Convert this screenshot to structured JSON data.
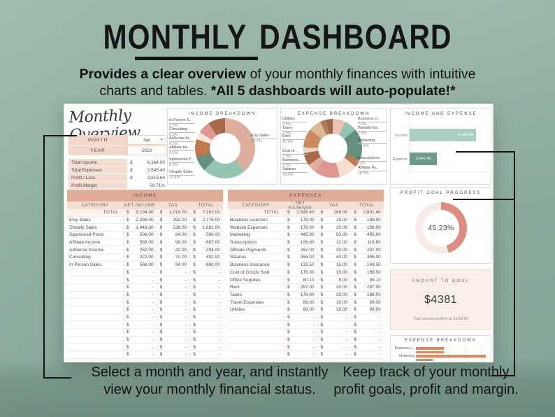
{
  "title": "MONTHLY DASHBOARD",
  "subtitle": {
    "bold1": "Provides a clear overview",
    "rest1": " of your monthly finances with intuitive",
    "rest2": "charts and tables. ",
    "bold2": "*All 5 dashboards will auto-populate!*"
  },
  "sheet": {
    "script_title": "Monthly Overview",
    "selector": {
      "month_label": "MONTH",
      "month_value": "Apr",
      "year_label": "YEAR",
      "year_value": "2023"
    },
    "summary": [
      {
        "label": "Total Income",
        "currency": "$",
        "value": "6,164.00"
      },
      {
        "label": "Total Expenses",
        "currency": "$",
        "value": "2,545.40"
      },
      {
        "label": "Profit / Loss",
        "currency": "$",
        "value": "3,618.60"
      },
      {
        "label": "Profit Margin",
        "currency": "",
        "value": "58.71%"
      }
    ]
  },
  "income_table": {
    "title": "INCOME",
    "columns": [
      "CATEGORY",
      "NET INCOME",
      "TAX",
      "TOTAL"
    ],
    "total_label": "TOTAL",
    "currency": "$",
    "dash": "-",
    "total": {
      "net": "6,164.00",
      "tax": "1,018.00",
      "total": "7,182.00"
    },
    "rows": [
      {
        "c": "Etsy Sales",
        "n": "2,386.00",
        "t": "392.00",
        "tt": "2,778.00"
      },
      {
        "c": "Shopify Sales",
        "n": "1,443.00",
        "t": "238.00",
        "tt": "1,681.00"
      },
      {
        "c": "Sponsored Posts",
        "n": "506.00",
        "t": "84.00",
        "tt": "590.00"
      },
      {
        "c": "Affiliate Income",
        "n": "589.00",
        "t": "98.00",
        "tt": "687.00"
      },
      {
        "c": "AdSense Income",
        "n": "252.00",
        "t": "42.00",
        "tt": "294.00"
      },
      {
        "c": "Consulting",
        "n": "422.00",
        "t": "70.00",
        "tt": "492.00"
      },
      {
        "c": "In Person Sales",
        "n": "566.00",
        "t": "94.00",
        "tt": "660.00"
      }
    ],
    "empty_rows": 12
  },
  "expense_table": {
    "title": "EXPENSES",
    "columns": [
      "CATEGORY",
      "NET EXPENSE",
      "TAX",
      "TOTAL"
    ],
    "total_label": "TOTAL",
    "currency": "$",
    "dash": "-",
    "total": {
      "net": "2,545.40",
      "tax": "286.00",
      "total": "2,831.40"
    },
    "rows": [
      {
        "c": "Business Licenses",
        "n": "178.00",
        "t": "20.00",
        "tt": "198.00"
      },
      {
        "c": "Website Expenses",
        "n": "178.00",
        "t": "20.00",
        "tt": "198.00"
      },
      {
        "c": "Marketing",
        "n": "445.00",
        "t": "50.00",
        "tt": "495.00"
      },
      {
        "c": "Subscriptions",
        "n": "106.80",
        "t": "12.00",
        "tt": "118.80"
      },
      {
        "c": "Affiliate Payments",
        "n": "267.00",
        "t": "30.00",
        "tt": "297.00"
      },
      {
        "c": "Salaries",
        "n": "356.00",
        "t": "40.00",
        "tt": "396.00"
      },
      {
        "c": "Business Insurance",
        "n": "133.50",
        "t": "15.00",
        "tt": "148.50"
      },
      {
        "c": "Cost of Goods Sold",
        "n": "178.00",
        "t": "20.00",
        "tt": "198.00"
      },
      {
        "c": "Office Supplies",
        "n": "80.10",
        "t": "9.00",
        "tt": "89.10"
      },
      {
        "c": "Rent",
        "n": "267.00",
        "t": "30.00",
        "tt": "297.00"
      },
      {
        "c": "Taxes",
        "n": "178.00",
        "t": "20.00",
        "tt": "198.00"
      },
      {
        "c": "Travel Expenses",
        "n": "89.00",
        "t": "10.00",
        "tt": "99.00"
      },
      {
        "c": "Utilities",
        "n": "89.00",
        "t": "10.00",
        "tt": "99.00"
      }
    ],
    "empty_rows": 6
  },
  "cards": {
    "amount_to_goal": {
      "title": "AMOUNT TO GOAL",
      "value": "$4381",
      "note": "Your current profit is at 3,618.60"
    }
  },
  "chart_data": [
    {
      "type": "pie",
      "title": "INCOME BREAKDOWN",
      "labels": [
        "Etsy Sales",
        "Shopify Sales",
        "Sponsored Posts",
        "Affiliate Income",
        "AdSense Income",
        "Consulting",
        "In Person Sales"
      ],
      "values": [
        2778,
        1681,
        590,
        687,
        294,
        492,
        660
      ],
      "pct": [
        "38.7%",
        "23.4%",
        "8.2%",
        "9.6%",
        "4.1%",
        "6.9%",
        "9.2%"
      ],
      "colors": [
        "#dcae9b",
        "#94c5b0",
        "#64907e",
        "#c0794f",
        "#f8e7d8",
        "#df9890",
        "#a96a4c"
      ],
      "callouts": [
        {
          "name": "In Person S..",
          "pct": "9.2%"
        },
        {
          "name": "Consulting",
          "pct": "6.9%"
        },
        {
          "name": "AdSense In..",
          "pct": "4.1%"
        },
        {
          "name": "Affiliate Inc..",
          "pct": "9.6%"
        },
        {
          "name": "Sponsored P..",
          "pct": "8.2%"
        },
        {
          "name": "Shopify Sales",
          "pct": "23.4%"
        },
        {
          "name": "Etsy Sales",
          "pct": "38.7%"
        }
      ]
    },
    {
      "type": "pie",
      "title": "EXPENSE BREAKDOWN",
      "labels": [
        "Business Licenses",
        "Website Expenses",
        "Marketing",
        "Subscriptions",
        "Affiliate Payments",
        "Salaries",
        "Business Insurance",
        "Cost of Goods Sold",
        "Office Supplies",
        "Rent",
        "Taxes",
        "Travel Expenses",
        "Utilities"
      ],
      "values": [
        198,
        198,
        495,
        118.8,
        297,
        396,
        148.5,
        198,
        89.1,
        297,
        198,
        99,
        99
      ],
      "pct": [
        "7.0%",
        "7.0%",
        "17.5%",
        "4.2%",
        "10.5%",
        "14.0%",
        "5.2%",
        "7.0%",
        "3.1%",
        "10.5%",
        "7.0%",
        "3.5%",
        "3.5%"
      ],
      "colors": [
        "#eac3b2",
        "#94c5b0",
        "#64907e",
        "#c0794f",
        "#f6e0cd",
        "#df9890",
        "#e0b0a0",
        "#a96a4c",
        "#f0d8c6",
        "#c88a60",
        "#ddb896",
        "#b27b58",
        "#9c6848"
      ],
      "callouts_left": [
        {
          "name": "Utilities",
          "pct": "3.5%"
        },
        {
          "name": "Taxes",
          "pct": "7.0%"
        },
        {
          "name": "Rent",
          "pct": "10.5%"
        },
        {
          "name": "Cost of ..",
          "pct": "7.0%"
        },
        {
          "name": "Business ..",
          "pct": "5.2%"
        },
        {
          "name": "Salaries",
          "pct": "14.0%"
        }
      ],
      "callouts_right": [
        {
          "name": "Business Li..",
          "pct": "7.0%"
        },
        {
          "name": "Website Ex..",
          "pct": "7.0%"
        },
        {
          "name": "Marketing",
          "pct": "17.5%"
        },
        {
          "name": "Subscriptions",
          "pct": "4.2%"
        },
        {
          "name": "Affiliate Pa..",
          "pct": "10.5%"
        }
      ]
    },
    {
      "type": "bar",
      "title": "INCOME AND EXPENSE",
      "categories": [
        "Income",
        "Expense"
      ],
      "values": [
        6164.0,
        2545.4
      ],
      "value_labels": [
        "6,164.00",
        "2,545.40"
      ],
      "xlim": [
        0,
        7000
      ]
    },
    {
      "type": "pie",
      "title": "PROFIT GOAL PROGRESS",
      "value": 45.23,
      "label": "45.23%"
    },
    {
      "type": "bar",
      "title": "EXPENSE BREAKDOWN",
      "rows": [
        {
          "label": "Business Li..",
          "value": 198
        },
        {
          "label": "",
          "value": 198
        },
        {
          "label": "Marketing",
          "value": 495
        },
        {
          "label": "",
          "value": 119
        }
      ],
      "xmax": 495
    }
  ],
  "captions": {
    "left1": "Select a month and year, and instantly",
    "left2": "view your monthly financial status.",
    "right1": "Keep track of your monthly",
    "right2": "profit goals, profit and margin."
  },
  "colors": {
    "background": "#8dac9e",
    "pink_header": "#e0ab97",
    "pink_light": "#f4ded2",
    "seafoam": "#a9cfc4",
    "teal": "#6e9a8c",
    "salmon": "#dd8d80",
    "gauge_track": "#f6ebe7",
    "orange": "#d98a5f",
    "dropdown_red": "#c2574b"
  }
}
